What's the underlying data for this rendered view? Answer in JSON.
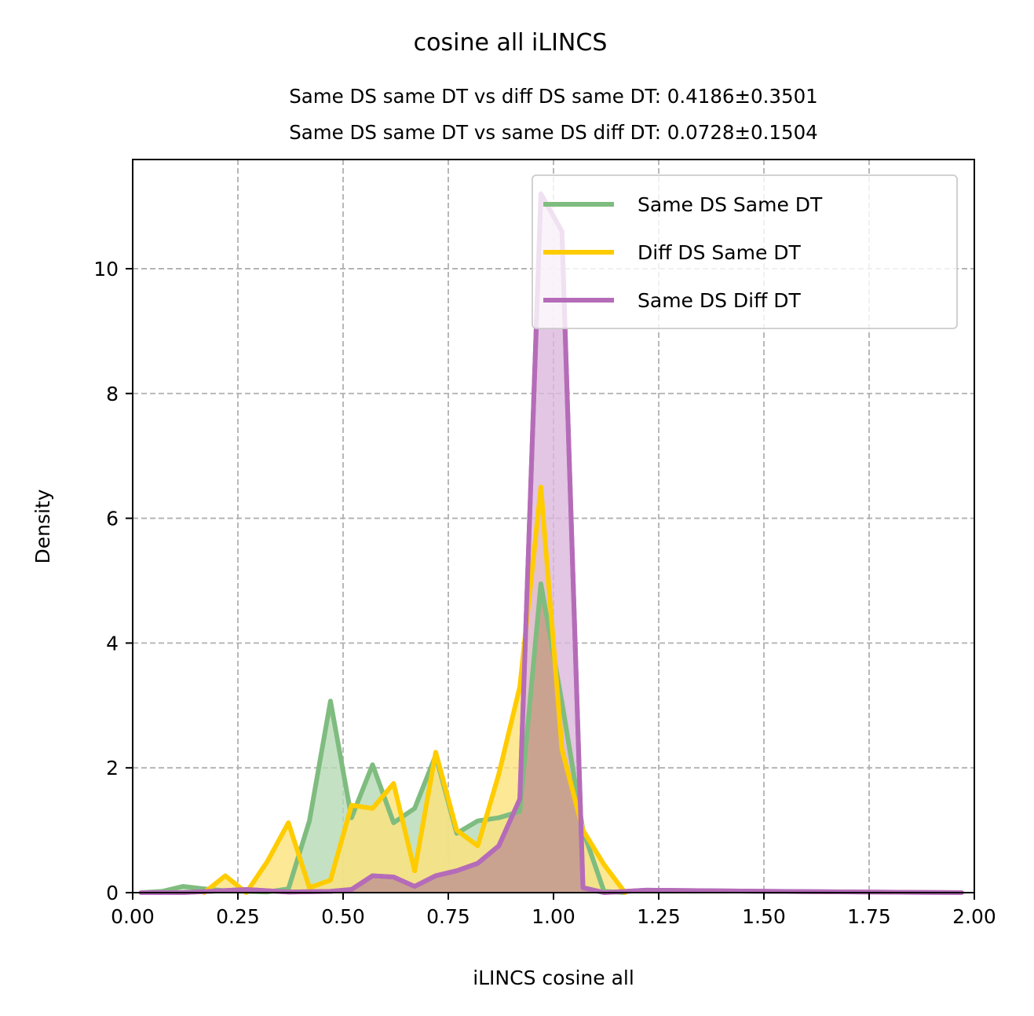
{
  "chart_data": {
    "type": "area",
    "title": "cosine all iLINCS",
    "subtitle_lines": [
      "Same DS same DT vs diff DS same DT: 0.4186±0.3501",
      "Same DS same DT vs same DS diff DT: 0.0728±0.1504"
    ],
    "xlabel": "iLINCS cosine all",
    "ylabel": "Density",
    "xlim": [
      0,
      2
    ],
    "ylim": [
      0,
      11.75
    ],
    "xticks": [
      0.0,
      0.25,
      0.5,
      0.75,
      1.0,
      1.25,
      1.5,
      1.75,
      2.0
    ],
    "xtick_labels": [
      "0.00",
      "0.25",
      "0.50",
      "0.75",
      "1.00",
      "1.25",
      "1.50",
      "1.75",
      "2.00"
    ],
    "yticks": [
      0,
      2,
      4,
      6,
      8,
      10
    ],
    "ytick_labels": [
      "0",
      "2",
      "4",
      "6",
      "8",
      "10"
    ],
    "grid": true,
    "legend_position": "top-right",
    "series": [
      {
        "name": "Same DS Same DT",
        "color": "#7fbc7f",
        "fill": "#b7dab5",
        "points": [
          [
            0.02,
            0.0
          ],
          [
            0.07,
            0.02
          ],
          [
            0.12,
            0.1
          ],
          [
            0.17,
            0.06
          ],
          [
            0.22,
            0.03
          ],
          [
            0.27,
            0.02
          ],
          [
            0.32,
            0.01
          ],
          [
            0.37,
            0.06
          ],
          [
            0.42,
            1.15
          ],
          [
            0.47,
            3.07
          ],
          [
            0.52,
            1.2
          ],
          [
            0.57,
            2.05
          ],
          [
            0.62,
            1.12
          ],
          [
            0.67,
            1.35
          ],
          [
            0.72,
            2.2
          ],
          [
            0.77,
            0.95
          ],
          [
            0.82,
            1.15
          ],
          [
            0.87,
            1.2
          ],
          [
            0.92,
            1.3
          ],
          [
            0.97,
            4.95
          ],
          [
            1.02,
            3.05
          ],
          [
            1.07,
            1.0
          ],
          [
            1.12,
            0.02
          ],
          [
            1.17,
            0.0
          ]
        ]
      },
      {
        "name": "Diff DS Same DT",
        "color": "#ffcc00",
        "fill": "#fde27a",
        "points": [
          [
            0.17,
            0.0
          ],
          [
            0.22,
            0.27
          ],
          [
            0.27,
            0.0
          ],
          [
            0.32,
            0.5
          ],
          [
            0.37,
            1.12
          ],
          [
            0.42,
            0.08
          ],
          [
            0.47,
            0.2
          ],
          [
            0.52,
            1.4
          ],
          [
            0.57,
            1.35
          ],
          [
            0.62,
            1.75
          ],
          [
            0.67,
            0.35
          ],
          [
            0.72,
            2.25
          ],
          [
            0.77,
            1.0
          ],
          [
            0.82,
            0.75
          ],
          [
            0.87,
            1.9
          ],
          [
            0.92,
            3.3
          ],
          [
            0.97,
            6.5
          ],
          [
            1.02,
            2.3
          ],
          [
            1.07,
            1.0
          ],
          [
            1.12,
            0.45
          ],
          [
            1.17,
            0.0
          ]
        ]
      },
      {
        "name": "Same DS Diff DT",
        "color": "#b56cb8",
        "fill": "#dcb7dd",
        "points": [
          [
            0.02,
            0.0
          ],
          [
            0.12,
            0.0
          ],
          [
            0.27,
            0.05
          ],
          [
            0.37,
            0.01
          ],
          [
            0.47,
            0.02
          ],
          [
            0.52,
            0.05
          ],
          [
            0.57,
            0.27
          ],
          [
            0.62,
            0.25
          ],
          [
            0.67,
            0.1
          ],
          [
            0.72,
            0.27
          ],
          [
            0.77,
            0.35
          ],
          [
            0.82,
            0.47
          ],
          [
            0.87,
            0.75
          ],
          [
            0.92,
            1.5
          ],
          [
            0.97,
            11.2
          ],
          [
            1.02,
            10.6
          ],
          [
            1.07,
            0.08
          ],
          [
            1.12,
            0.0
          ],
          [
            1.22,
            0.04
          ],
          [
            1.52,
            0.02
          ],
          [
            1.97,
            0.0
          ]
        ]
      }
    ],
    "overlap_fill": "#c8a08a"
  }
}
